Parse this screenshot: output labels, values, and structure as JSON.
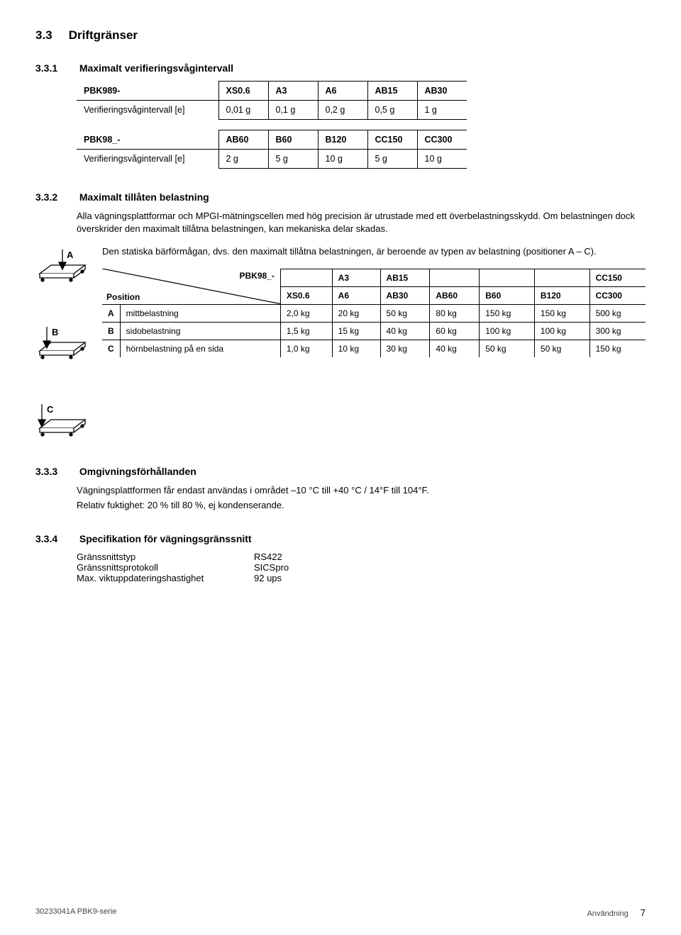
{
  "section": {
    "heading_num": "3.3",
    "heading_text": "Driftgränser",
    "s1": {
      "num": "3.3.1",
      "title": "Maximalt verifieringsvågintervall",
      "table1": {
        "model_header": "PBK989-",
        "cols": [
          "XS0.6",
          "A3",
          "A6",
          "AB15",
          "AB30"
        ],
        "row_label": "Verifieringsvågintervall [e]",
        "row_vals": [
          "0,01 g",
          "0,1 g",
          "0,2 g",
          "0,5 g",
          "1 g"
        ]
      },
      "table2": {
        "model_header": "PBK98_-",
        "cols": [
          "AB60",
          "B60",
          "B120",
          "CC150",
          "CC300"
        ],
        "row_label": "Verifieringsvågintervall [e]",
        "row_vals": [
          "2 g",
          "5 g",
          "10 g",
          "5 g",
          "10 g"
        ]
      }
    },
    "s2": {
      "num": "3.3.2",
      "title": "Maximalt tillåten belastning",
      "para1": "Alla vägningsplattformar och MPGI-mätningscellen med hög precision är utrustade med ett överbelastningsskydd. Om belastningen dock överskrider den maximalt tillåtna belastningen, kan mekaniska delar skadas.",
      "para2": "Den statiska bärförmågan, dvs. den maximalt tillåtna belastningen, är beroende av typen av belastning (positioner A – C).",
      "icon_labels": {
        "a": "A",
        "b": "B",
        "c": "C"
      },
      "table": {
        "corner_top": "PBK98_-",
        "corner_bottom": "Position",
        "head_row1": [
          "",
          "A3",
          "AB15",
          "",
          "",
          "",
          "CC150"
        ],
        "head_row2": [
          "XS0.6",
          "A6",
          "AB30",
          "AB60",
          "B60",
          "B120",
          "CC300"
        ],
        "rows": [
          {
            "key": "A",
            "label": "mittbelastning",
            "vals": [
              "2,0 kg",
              "20 kg",
              "50 kg",
              "80 kg",
              "150 kg",
              "150 kg",
              "500 kg"
            ]
          },
          {
            "key": "B",
            "label": "sidobelastning",
            "vals": [
              "1,5 kg",
              "15 kg",
              "40 kg",
              "60 kg",
              "100 kg",
              "100 kg",
              "300 kg"
            ]
          },
          {
            "key": "C",
            "label": "hörnbelastning på en sida",
            "vals": [
              "1,0 kg",
              "10 kg",
              "30 kg",
              "40 kg",
              "50 kg",
              "50 kg",
              "150 kg"
            ]
          }
        ]
      }
    },
    "s3": {
      "num": "3.3.3",
      "title": "Omgivningsförhållanden",
      "para1": "Vägningsplattformen får endast användas i området –10 °C till +40 °C / 14°F till 104°F.",
      "para2": "Relativ fuktighet: 20 % till 80 %, ej kondenserande."
    },
    "s4": {
      "num": "3.3.4",
      "title": "Specifikation för vägningsgränssnitt",
      "rows": [
        {
          "k": "Gränssnittstyp",
          "v": "RS422"
        },
        {
          "k": "Gränssnittsprotokoll",
          "v": "SICSpro"
        },
        {
          "k": "Max. viktuppdateringshastighet",
          "v": "92 ups"
        }
      ]
    }
  },
  "footer": {
    "left": "30233041A PBK9-serie",
    "right_label": "Användning",
    "page": "7"
  },
  "style": {
    "icon_stroke": "#000000",
    "icon_fill": "#ffffff",
    "arrow_fill": "#000000"
  }
}
